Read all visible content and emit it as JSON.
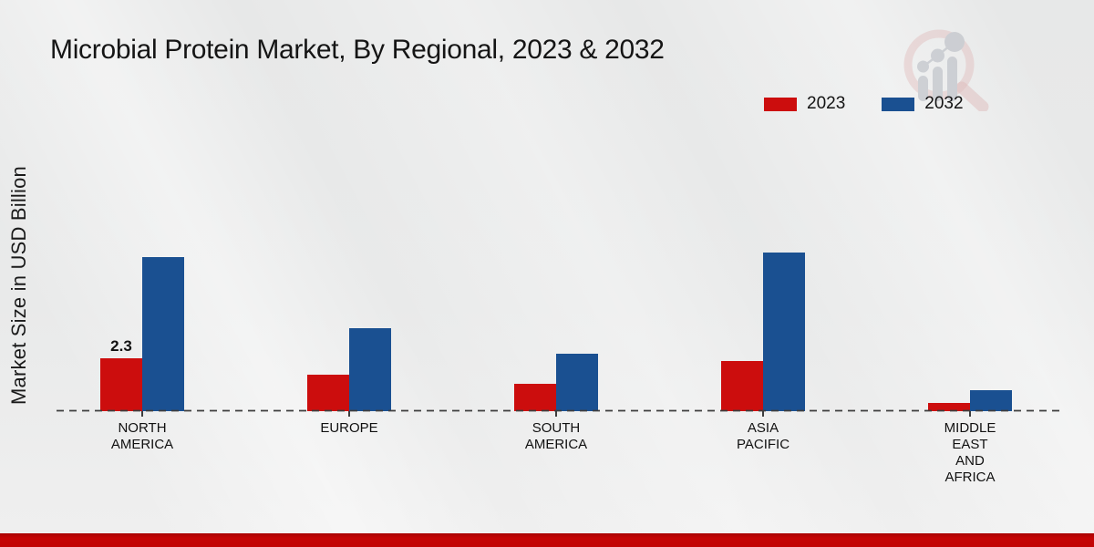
{
  "title": "Microbial Protein Market, By Regional, 2023 & 2032",
  "y_axis_label": "Market Size in USD Billion",
  "legend": {
    "items": [
      {
        "label": "2023",
        "color": "#cc0d0d"
      },
      {
        "label": "2032",
        "color": "#1a5091"
      }
    ]
  },
  "watermark": {
    "icon": "magnifier-bar-chart-logo"
  },
  "colors": {
    "series_2023": "#cc0d0d",
    "series_2032": "#1a5091",
    "baseline": "#3e3e3e",
    "background": "#e9eaea",
    "bottom_bar": "#c20404",
    "text": "#141414"
  },
  "chart_data": {
    "type": "bar",
    "title": "Microbial Protein Market, By Regional, 2023 & 2032",
    "xlabel": "",
    "ylabel": "Market Size in USD Billion",
    "units": "USD Billion",
    "categories": [
      "NORTH AMERICA",
      "EUROPE",
      "SOUTH AMERICA",
      "ASIA PACIFIC",
      "MIDDLE EAST AND AFRICA"
    ],
    "category_label_lines": [
      [
        "NORTH",
        "AMERICA"
      ],
      [
        "EUROPE"
      ],
      [
        "SOUTH",
        "AMERICA"
      ],
      [
        "ASIA",
        "PACIFIC"
      ],
      [
        "MIDDLE",
        "EAST",
        "AND",
        "AFRICA"
      ]
    ],
    "series": [
      {
        "name": "2023",
        "color": "#cc0d0d",
        "values": [
          2.3,
          1.6,
          1.2,
          2.2,
          0.35
        ]
      },
      {
        "name": "2032",
        "color": "#1a5091",
        "values": [
          6.7,
          3.6,
          2.5,
          6.9,
          0.9
        ]
      }
    ],
    "data_labels": [
      {
        "series": "2023",
        "category": "NORTH AMERICA",
        "text": "2.3"
      }
    ],
    "ylim": [
      0,
      7.5
    ],
    "grid": false,
    "y_ticks_visible": false,
    "legend_position": "top-right",
    "baseline_style": "dashed"
  }
}
